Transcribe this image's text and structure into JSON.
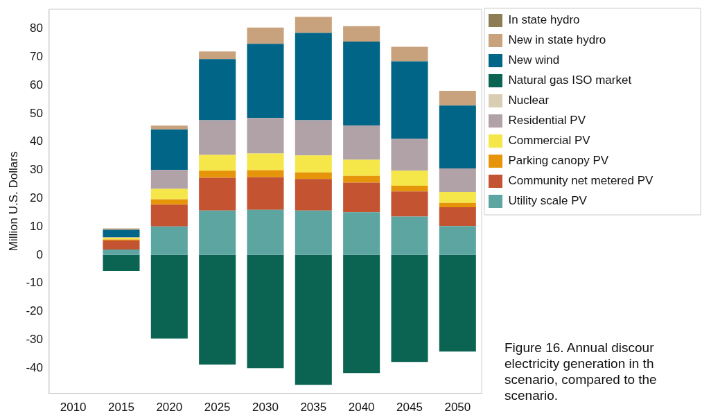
{
  "chart_data": {
    "type": "bar",
    "stacked": true,
    "ylabel": "Million U.S. Dollars",
    "categories": [
      "2010",
      "2015",
      "2020",
      "2025",
      "2030",
      "2035",
      "2040",
      "2045",
      "2050"
    ],
    "ylim": [
      -49,
      87
    ],
    "yticks": [
      -40,
      -30,
      -20,
      -10,
      0,
      10,
      20,
      30,
      40,
      50,
      60,
      70,
      80
    ],
    "grid": false,
    "legend": "right",
    "annotations": [
      "Figure 16. Annual discour electricity generation in th scenario, compared to the scenario."
    ],
    "series": [
      {
        "name": "Utility scale PV",
        "color": "#5ca5a1",
        "values": [
          null,
          1.9,
          10.1,
          15.7,
          16.0,
          15.7,
          15.1,
          13.6,
          10.2
        ]
      },
      {
        "name": "Community net metered PV",
        "color": "#c35331",
        "values": [
          null,
          3.2,
          7.7,
          11.6,
          11.5,
          11.2,
          10.5,
          8.9,
          6.7
        ]
      },
      {
        "name": "Parking canopy PV",
        "color": "#e6950a",
        "values": [
          null,
          0.4,
          1.9,
          2.5,
          2.5,
          2.3,
          2.4,
          2.0,
          1.5
        ]
      },
      {
        "name": "Commercial PV",
        "color": "#f5e64a",
        "values": [
          null,
          0.6,
          3.7,
          5.6,
          5.9,
          6.0,
          5.7,
          5.3,
          3.9
        ]
      },
      {
        "name": "Residential PV",
        "color": "#b0a2a6",
        "values": [
          null,
          0.2,
          6.7,
          12.3,
          12.6,
          12.5,
          12.1,
          11.3,
          8.3
        ]
      },
      {
        "name": "Nuclear",
        "color": "#d9ceb4",
        "values": [
          null,
          null,
          null,
          null,
          null,
          null,
          null,
          null,
          null
        ]
      },
      {
        "name": "Natural gas ISO market",
        "color": "#0b6452",
        "values": [
          null,
          -5.7,
          -29.6,
          -38.8,
          -40.1,
          -46.0,
          -41.8,
          -37.9,
          -34.2
        ]
      },
      {
        "name": "New wind",
        "color": "#006587",
        "values": [
          null,
          2.6,
          14.3,
          21.6,
          26.2,
          30.9,
          29.7,
          27.4,
          22.3
        ]
      },
      {
        "name": "New in state hydro",
        "color": "#c8a27c",
        "values": [
          null,
          0.5,
          1.4,
          2.7,
          5.8,
          5.7,
          5.5,
          5.2,
          5.2
        ]
      },
      {
        "name": "In state hydro",
        "color": "#8c7d55",
        "values": [
          null,
          null,
          null,
          null,
          null,
          null,
          null,
          null,
          null
        ]
      }
    ]
  }
}
